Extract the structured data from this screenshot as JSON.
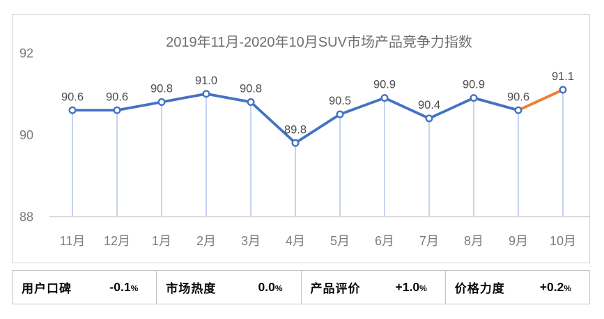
{
  "chart_data": {
    "type": "line",
    "title": "2019年11月-2020年10月SUV市场产品竞争力指数",
    "categories": [
      "11月",
      "12月",
      "1月",
      "2月",
      "3月",
      "4月",
      "5月",
      "6月",
      "7月",
      "8月",
      "9月",
      "10月"
    ],
    "values": [
      90.6,
      90.6,
      90.8,
      91.0,
      90.8,
      89.8,
      90.5,
      90.9,
      90.4,
      90.9,
      90.6,
      91.1
    ],
    "yticks": [
      88,
      90,
      92
    ],
    "ylim": [
      88,
      92
    ],
    "grid": "off",
    "legend": "none",
    "data_labels": "above",
    "highlight_last_segment": true,
    "colors": {
      "line": "#4472C4",
      "highlight": "#ED7D31",
      "marker_fill": "#FFFFFF",
      "marker_stroke": "#4472C4",
      "drop_line": "#C4D4EF",
      "axis": "#D9D9D9"
    }
  },
  "stats": {
    "items": [
      {
        "label": "用户口碑",
        "value": "-0.1",
        "unit": "%"
      },
      {
        "label": "市场热度",
        "value": "0.0",
        "unit": "%"
      },
      {
        "label": "产品评价",
        "value": "+1.0",
        "unit": "%"
      },
      {
        "label": "价格力度",
        "value": "+0.2",
        "unit": "%"
      }
    ]
  }
}
